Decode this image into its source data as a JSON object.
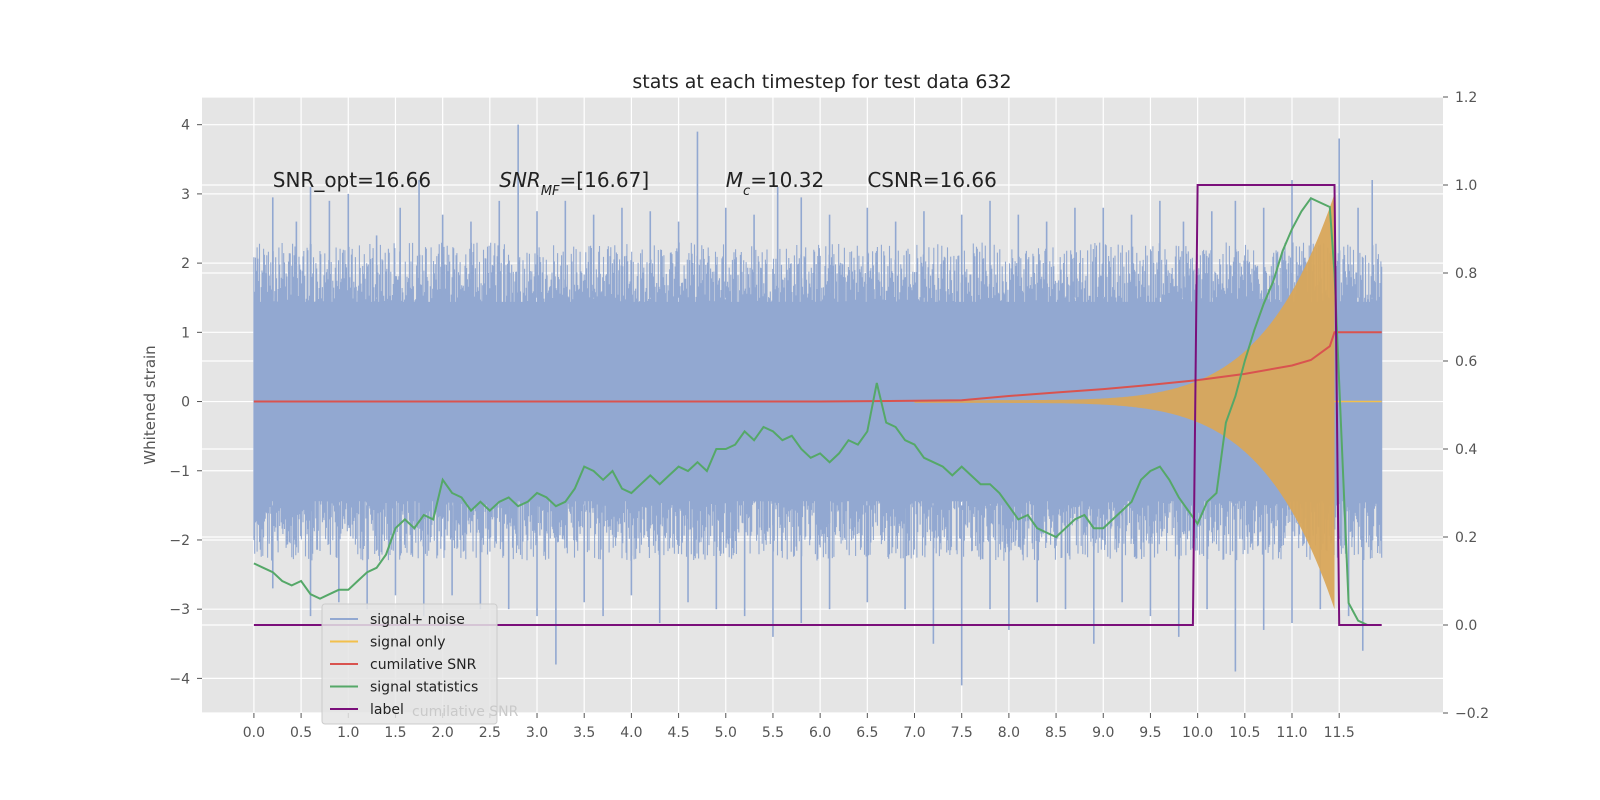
{
  "chart_data": {
    "type": "line",
    "title": "stats at each timestep for test data 632",
    "xlabel": "",
    "ylabel": "Whitened strain",
    "x_ticks": [
      "0.0",
      "0.5",
      "1.0",
      "1.5",
      "2.0",
      "2.5",
      "3.0",
      "3.5",
      "4.0",
      "4.5",
      "5.0",
      "5.5",
      "6.0",
      "6.5",
      "7.0",
      "7.5",
      "8.0",
      "8.5",
      "9.0",
      "9.5",
      "10.0",
      "10.5",
      "11.0",
      "11.5"
    ],
    "xlim": [
      -0.55,
      12.6
    ],
    "ylim_left": [
      -4.5,
      4.4
    ],
    "ylim_right": [
      -0.2,
      1.2
    ],
    "y_ticks_left": [
      "−4",
      "−3",
      "−2",
      "−1",
      "0",
      "1",
      "2",
      "3",
      "4"
    ],
    "y_ticks_right": [
      "−0.2",
      "0.0",
      "0.2",
      "0.4",
      "0.6",
      "0.8",
      "1.0",
      "1.2"
    ],
    "annotations": [
      {
        "prefix": "SNR_opt=16.66",
        "x": 0.2
      },
      {
        "prefix": "SNR",
        "sub": "MF",
        "suffix": "=[16.67]",
        "x": 2.6
      },
      {
        "prefix": "M",
        "sub": "c",
        "suffix": "=10.32",
        "x": 5.0
      },
      {
        "prefix": "CSNR=16.66",
        "x": 6.5
      }
    ],
    "annotation_y": 3.2,
    "legend": {
      "placement": "lower-left",
      "entries": [
        {
          "name": "signal+ noise",
          "color": "#92a8d1"
        },
        {
          "name": "signal only",
          "color": "#f2c04c"
        },
        {
          "name": "cumilative SNR",
          "color": "#d9534f"
        },
        {
          "name": "signal statistics",
          "color": "#55a868"
        },
        {
          "name": "label",
          "color": "#7a0f7a"
        }
      ],
      "ghost_text": "cumilative SNR"
    },
    "series": [
      {
        "name": "signal+ noise",
        "axis": "left",
        "color": "#92a8d1",
        "x_start": 0.0,
        "x_end": 11.95,
        "envelope_upper": 2.0,
        "envelope_lower": -2.0,
        "spikes_up": [
          [
            0.2,
            2.95
          ],
          [
            0.45,
            2.6
          ],
          [
            0.6,
            3.1
          ],
          [
            0.8,
            2.9
          ],
          [
            1.0,
            3.0
          ],
          [
            1.3,
            2.4
          ],
          [
            1.55,
            2.8
          ],
          [
            1.75,
            3.2
          ],
          [
            2.0,
            2.7
          ],
          [
            2.3,
            2.6
          ],
          [
            2.6,
            2.9
          ],
          [
            2.8,
            4.0
          ],
          [
            3.0,
            2.75
          ],
          [
            3.3,
            2.9
          ],
          [
            3.6,
            2.7
          ],
          [
            3.9,
            2.8
          ],
          [
            4.2,
            2.75
          ],
          [
            4.5,
            2.6
          ],
          [
            4.7,
            3.9
          ],
          [
            5.0,
            2.8
          ],
          [
            5.3,
            2.7
          ],
          [
            5.55,
            3.1
          ],
          [
            5.8,
            2.95
          ],
          [
            6.1,
            2.7
          ],
          [
            6.5,
            2.8
          ],
          [
            6.8,
            2.6
          ],
          [
            7.1,
            2.75
          ],
          [
            7.5,
            2.7
          ],
          [
            7.8,
            2.9
          ],
          [
            8.1,
            2.7
          ],
          [
            8.4,
            2.6
          ],
          [
            8.7,
            2.8
          ],
          [
            9.0,
            2.8
          ],
          [
            9.3,
            2.7
          ],
          [
            9.6,
            2.9
          ],
          [
            9.85,
            2.6
          ],
          [
            10.15,
            2.75
          ],
          [
            10.4,
            2.9
          ],
          [
            10.7,
            2.8
          ],
          [
            11.0,
            3.2
          ],
          [
            11.2,
            2.95
          ],
          [
            11.5,
            3.8
          ],
          [
            11.7,
            2.8
          ],
          [
            11.85,
            3.2
          ]
        ],
        "spikes_down": [
          [
            0.2,
            -2.7
          ],
          [
            0.6,
            -3.1
          ],
          [
            0.9,
            -2.9
          ],
          [
            1.2,
            -3.0
          ],
          [
            1.5,
            -2.8
          ],
          [
            1.8,
            -3.1
          ],
          [
            2.1,
            -2.8
          ],
          [
            2.4,
            -3.0
          ],
          [
            2.7,
            -3.0
          ],
          [
            3.0,
            -3.1
          ],
          [
            3.2,
            -3.8
          ],
          [
            3.5,
            -2.9
          ],
          [
            3.7,
            -3.1
          ],
          [
            4.0,
            -2.8
          ],
          [
            4.3,
            -3.2
          ],
          [
            4.6,
            -2.9
          ],
          [
            4.9,
            -3.0
          ],
          [
            5.2,
            -3.1
          ],
          [
            5.5,
            -3.4
          ],
          [
            5.8,
            -3.2
          ],
          [
            6.1,
            -3.0
          ],
          [
            6.5,
            -2.9
          ],
          [
            6.9,
            -3.0
          ],
          [
            7.2,
            -3.5
          ],
          [
            7.5,
            -4.1
          ],
          [
            7.8,
            -3.0
          ],
          [
            8.0,
            -3.3
          ],
          [
            8.3,
            -2.9
          ],
          [
            8.6,
            -3.0
          ],
          [
            8.9,
            -3.5
          ],
          [
            9.2,
            -2.9
          ],
          [
            9.5,
            -3.1
          ],
          [
            9.8,
            -3.4
          ],
          [
            10.1,
            -3.0
          ],
          [
            10.4,
            -3.9
          ],
          [
            10.7,
            -3.3
          ],
          [
            11.0,
            -3.2
          ],
          [
            11.3,
            -3.0
          ],
          [
            11.6,
            -3.1
          ],
          [
            11.75,
            -3.6
          ]
        ]
      },
      {
        "name": "signal only",
        "axis": "left",
        "color": "#f2c04c",
        "x_start": 7.0,
        "x_peak": 11.45,
        "amplitude_start": 0.02,
        "amplitude_peak": 3.0,
        "x_end": 11.95
      },
      {
        "name": "cumilative SNR",
        "axis": "left",
        "color": "#d9534f",
        "x": [
          0.0,
          1.0,
          2.0,
          3.0,
          4.0,
          5.0,
          6.0,
          7.0,
          7.5,
          8.0,
          8.5,
          9.0,
          9.5,
          10.0,
          10.5,
          11.0,
          11.2,
          11.4,
          11.45,
          11.95
        ],
        "y": [
          0.0,
          0.0,
          0.0,
          0.0,
          0.0,
          0.0,
          0.0,
          0.01,
          0.02,
          0.08,
          0.13,
          0.18,
          0.24,
          0.31,
          0.4,
          0.52,
          0.6,
          0.8,
          1.0,
          1.0
        ]
      },
      {
        "name": "signal statistics",
        "axis": "right",
        "color": "#55a868",
        "x": [
          0.0,
          0.1,
          0.2,
          0.3,
          0.4,
          0.5,
          0.6,
          0.7,
          0.8,
          0.9,
          1.0,
          1.1,
          1.2,
          1.3,
          1.4,
          1.5,
          1.6,
          1.7,
          1.8,
          1.9,
          2.0,
          2.1,
          2.2,
          2.3,
          2.4,
          2.5,
          2.6,
          2.7,
          2.8,
          2.9,
          3.0,
          3.1,
          3.2,
          3.3,
          3.4,
          3.5,
          3.6,
          3.7,
          3.8,
          3.9,
          4.0,
          4.1,
          4.2,
          4.3,
          4.4,
          4.5,
          4.6,
          4.7,
          4.8,
          4.9,
          5.0,
          5.1,
          5.2,
          5.3,
          5.4,
          5.5,
          5.6,
          5.7,
          5.8,
          5.9,
          6.0,
          6.1,
          6.2,
          6.3,
          6.4,
          6.5,
          6.6,
          6.7,
          6.8,
          6.9,
          7.0,
          7.1,
          7.2,
          7.3,
          7.4,
          7.5,
          7.6,
          7.7,
          7.8,
          7.9,
          8.0,
          8.1,
          8.2,
          8.3,
          8.4,
          8.5,
          8.6,
          8.7,
          8.8,
          8.9,
          9.0,
          9.1,
          9.2,
          9.3,
          9.4,
          9.5,
          9.6,
          9.7,
          9.8,
          9.9,
          10.0,
          10.1,
          10.2,
          10.3,
          10.4,
          10.5,
          10.6,
          10.7,
          10.8,
          10.9,
          11.0,
          11.1,
          11.2,
          11.3,
          11.4,
          11.45,
          11.5,
          11.6,
          11.7,
          11.8,
          11.9
        ],
        "y": [
          0.14,
          0.13,
          0.12,
          0.1,
          0.09,
          0.1,
          0.07,
          0.06,
          0.07,
          0.08,
          0.08,
          0.1,
          0.12,
          0.13,
          0.16,
          0.22,
          0.24,
          0.22,
          0.25,
          0.24,
          0.33,
          0.3,
          0.29,
          0.26,
          0.28,
          0.26,
          0.28,
          0.29,
          0.27,
          0.28,
          0.3,
          0.29,
          0.27,
          0.28,
          0.31,
          0.36,
          0.35,
          0.33,
          0.35,
          0.31,
          0.3,
          0.32,
          0.34,
          0.32,
          0.34,
          0.36,
          0.35,
          0.37,
          0.35,
          0.4,
          0.4,
          0.41,
          0.44,
          0.42,
          0.45,
          0.44,
          0.42,
          0.43,
          0.4,
          0.38,
          0.39,
          0.37,
          0.39,
          0.42,
          0.41,
          0.44,
          0.55,
          0.46,
          0.45,
          0.42,
          0.41,
          0.38,
          0.37,
          0.36,
          0.34,
          0.36,
          0.34,
          0.32,
          0.32,
          0.3,
          0.27,
          0.24,
          0.25,
          0.22,
          0.21,
          0.2,
          0.22,
          0.24,
          0.25,
          0.22,
          0.22,
          0.24,
          0.26,
          0.28,
          0.33,
          0.35,
          0.36,
          0.33,
          0.29,
          0.26,
          0.23,
          0.28,
          0.3,
          0.46,
          0.52,
          0.6,
          0.67,
          0.73,
          0.78,
          0.85,
          0.9,
          0.94,
          0.97,
          0.96,
          0.95,
          0.8,
          0.55,
          0.05,
          0.01,
          0.0,
          0.0
        ]
      },
      {
        "name": "label",
        "axis": "right",
        "color": "#7a0f7a",
        "x": [
          0.0,
          9.95,
          10.0,
          11.45,
          11.5,
          11.95
        ],
        "y": [
          0.0,
          0.0,
          1.0,
          1.0,
          0.0,
          0.0
        ]
      }
    ]
  }
}
